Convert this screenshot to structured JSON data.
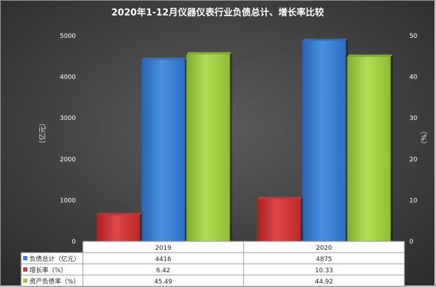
{
  "chart_data": {
    "type": "bar",
    "title": "2020年1-12月仪器仪表行业负债总计、增长率比较",
    "categories": [
      "2019",
      "2020"
    ],
    "ylabel_left": "（亿元）",
    "ylabel_right": "（%）",
    "ylim_left": [
      0,
      5000
    ],
    "ylim_right": [
      0,
      50
    ],
    "left_ticks": [
      "0",
      "1000",
      "2000",
      "3000",
      "4000",
      "5000"
    ],
    "right_ticks": [
      "0",
      "10",
      "20",
      "30",
      "40",
      "50"
    ],
    "grid": false,
    "legend": "data-table",
    "series": [
      {
        "name": "负债总计（亿元）",
        "axis": "left",
        "color": "#3a7fd5",
        "values": [
          4416,
          4875
        ],
        "labels": [
          "4416",
          "4875"
        ]
      },
      {
        "name": "增长率（%）",
        "axis": "right",
        "color": "#d23a3a",
        "values": [
          6.42,
          10.33
        ],
        "labels": [
          "6.42",
          "10.33"
        ]
      },
      {
        "name": "资产负债率（%）",
        "axis": "right",
        "color": "#9acd3c",
        "values": [
          45.49,
          44.92
        ],
        "labels": [
          "45.49",
          "44.92"
        ]
      }
    ]
  }
}
